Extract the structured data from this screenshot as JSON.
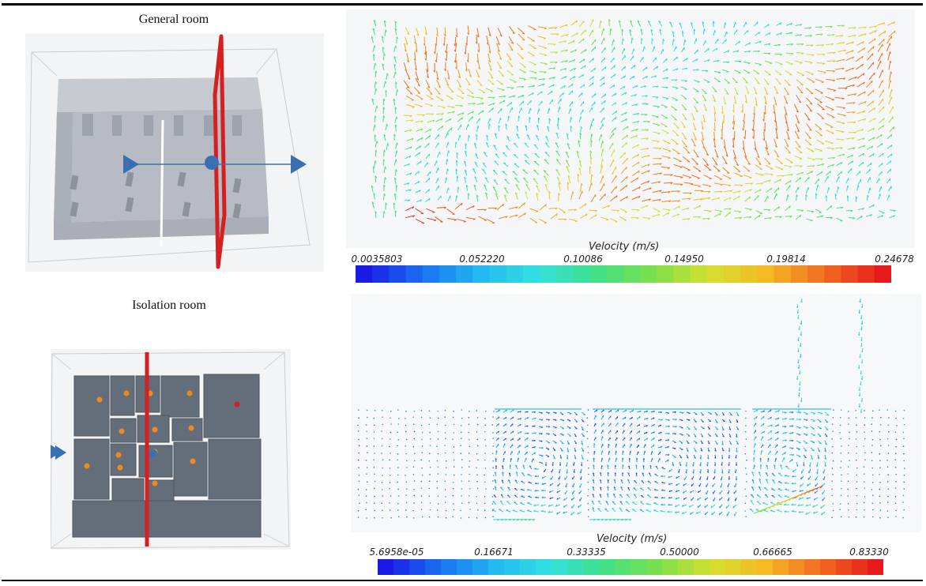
{
  "rows": [
    {
      "caption": "General room",
      "model_icons": [
        "inlet-arrow-icon",
        "outlet-arrow-icon",
        "section-plane-icon"
      ],
      "colorbar": {
        "title": "Velocity (m/s)",
        "ticks": [
          "0.0035803",
          "0.052220",
          "0.10086",
          "0.14950",
          "0.19814",
          "0.24678"
        ],
        "min": 0.0035803,
        "max": 0.24678
      }
    },
    {
      "caption": "Isolation room",
      "model_icons": [
        "inlet-arrow-icon",
        "section-plane-icon",
        "patient-marker-icon"
      ],
      "colorbar": {
        "title": "Velocity (m/s)",
        "ticks": [
          "5.6958e-05",
          "0.16671",
          "0.33335",
          "0.50000",
          "0.66665",
          "0.83330"
        ],
        "min": 5.6958e-05,
        "max": 0.8333
      }
    }
  ],
  "colors": {
    "colormap": [
      "#1a1ae6",
      "#1a6ff0",
      "#22b8f2",
      "#33e0e0",
      "#3fe08a",
      "#7ae04a",
      "#d6e030",
      "#f5b823",
      "#f06a1f",
      "#e61a1a"
    ],
    "section_plane": "#d42020",
    "room_wall": "#b9bec6",
    "isolation_wall": "#646d7a",
    "arrow_marker": "#3a6fb0"
  }
}
